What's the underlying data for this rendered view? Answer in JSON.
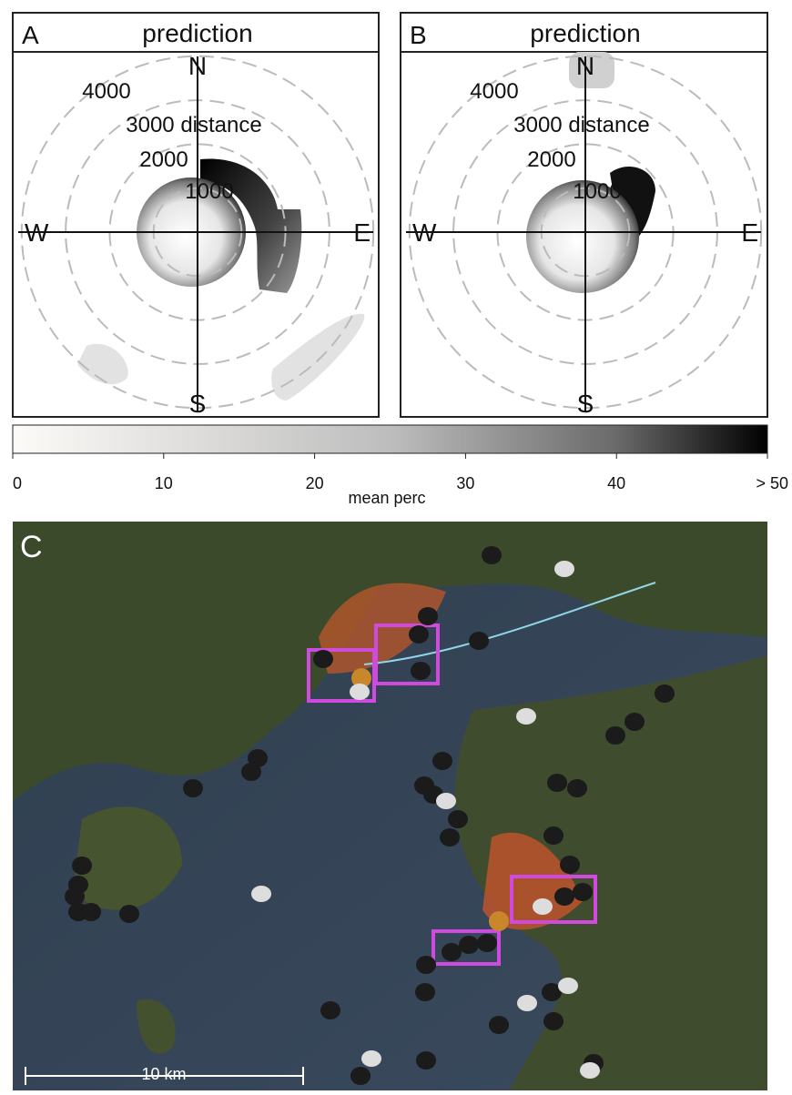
{
  "panels": [
    {
      "letter": "A",
      "title": "prediction"
    },
    {
      "letter": "B",
      "title": "prediction"
    }
  ],
  "compass": [
    "N",
    "E",
    "S",
    "W"
  ],
  "rings": [
    {
      "value": 1000,
      "label": "1000"
    },
    {
      "value": 2000,
      "label": "2000"
    },
    {
      "value": 3000,
      "label": "3000 distance"
    },
    {
      "value": 4000,
      "label": "4000"
    }
  ],
  "colorbar": {
    "label": "mean perc",
    "lim": [
      0,
      50
    ],
    "ticks": [
      0,
      10,
      20,
      30,
      40,
      {
        "value": 50,
        "label": "> 50"
      }
    ]
  },
  "map": {
    "letter": "C",
    "scale_bar": "10 km"
  }
}
